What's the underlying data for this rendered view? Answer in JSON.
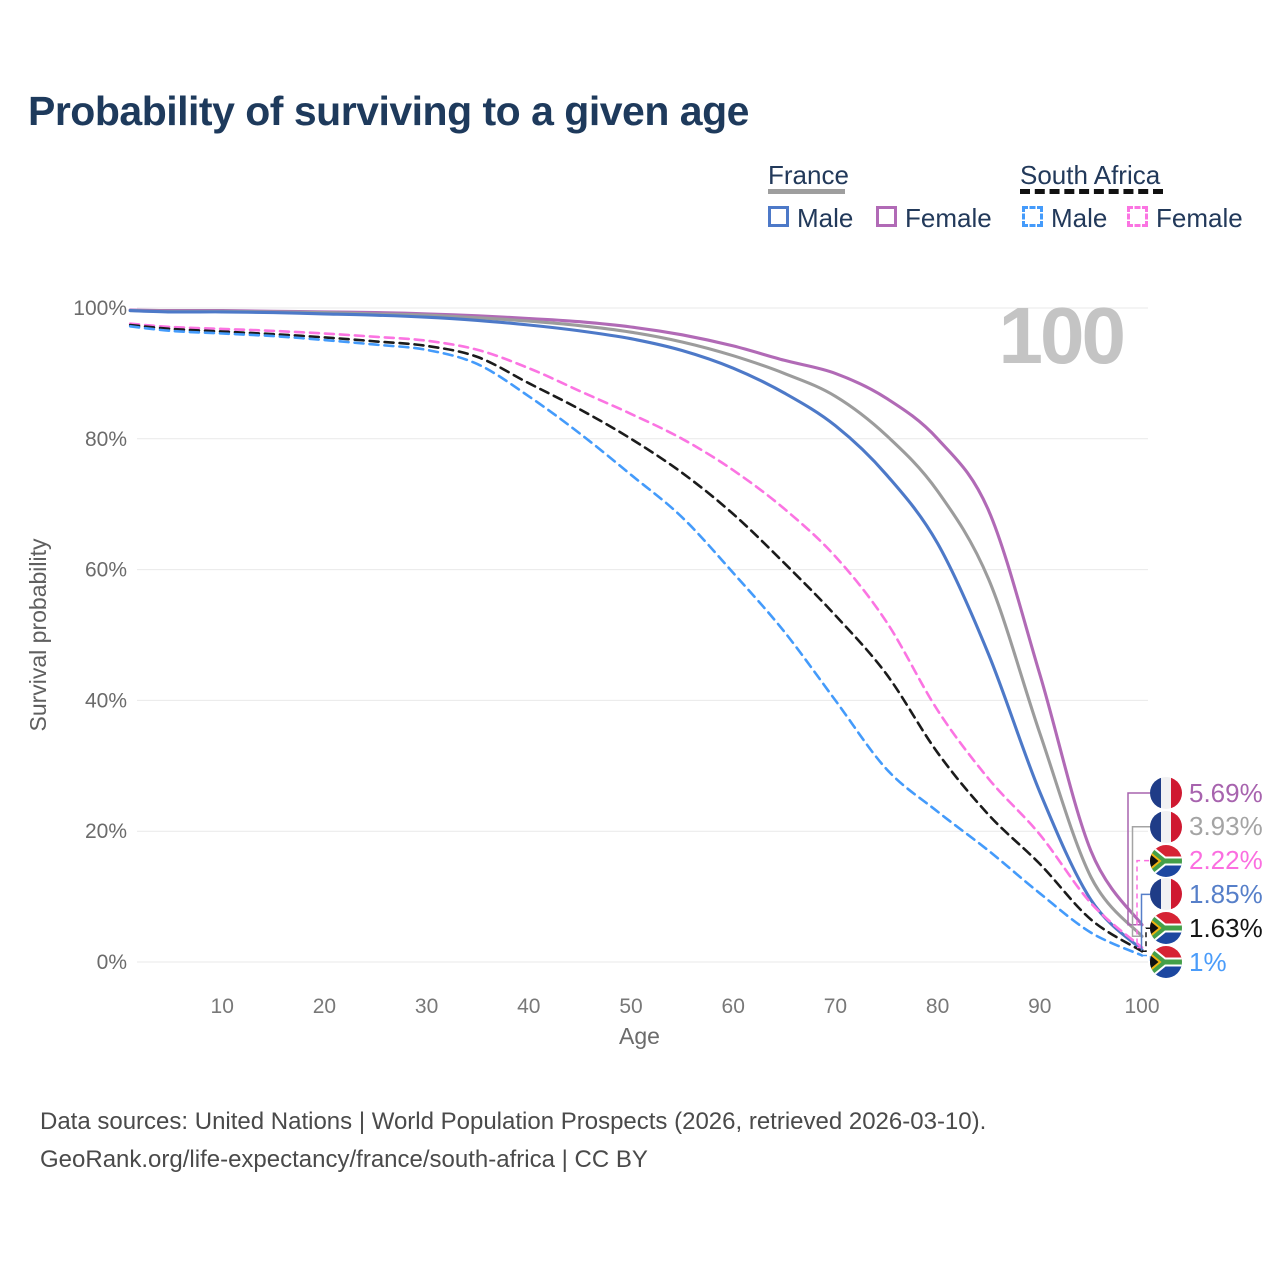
{
  "title": "Probability of surviving to a given age",
  "legend": {
    "groups": [
      {
        "label": "France",
        "style": "solid",
        "underline_color": "#9e9e9e",
        "items": [
          {
            "label": "Male",
            "color": "#4d79c8"
          },
          {
            "label": "Female",
            "color": "#b16ab6"
          }
        ]
      },
      {
        "label": "South Africa",
        "style": "dashed",
        "underline_color": "#111111",
        "items": [
          {
            "label": "Male",
            "color": "#449bfb"
          },
          {
            "label": "Female",
            "color": "#fb74e2"
          }
        ]
      }
    ]
  },
  "annotation": {
    "age_marker": "100"
  },
  "axes": {
    "x": {
      "label": "Age",
      "ticks": [
        10,
        20,
        30,
        40,
        50,
        60,
        70,
        80,
        90,
        100
      ],
      "min": 1,
      "max": 100
    },
    "y": {
      "label": "Survival probability",
      "tick_labels": [
        "0%",
        "20%",
        "40%",
        "60%",
        "80%",
        "100%"
      ],
      "tick_values": [
        0,
        20,
        40,
        60,
        80,
        100
      ]
    }
  },
  "chart_data": {
    "type": "line",
    "title": "Probability of surviving to a given age",
    "xlabel": "Age",
    "ylabel": "Survival probability",
    "xlim": [
      1,
      100
    ],
    "ylim": [
      0,
      100
    ],
    "grid": "horizontal",
    "legend_position": "top-right",
    "x": [
      1,
      5,
      10,
      15,
      20,
      25,
      30,
      35,
      40,
      45,
      50,
      55,
      60,
      65,
      70,
      75,
      80,
      85,
      90,
      95,
      100
    ],
    "series": [
      {
        "name": "France Female",
        "country": "France",
        "sex": "Female",
        "color": "#b16ab6",
        "dash": "solid",
        "values": [
          99.7,
          99.6,
          99.6,
          99.5,
          99.4,
          99.3,
          99.1,
          98.8,
          98.4,
          97.9,
          97.1,
          95.9,
          94.2,
          92.0,
          90.0,
          86.2,
          80.0,
          69.0,
          44.0,
          17.0,
          5.69
        ]
      },
      {
        "name": "France Both sexes",
        "country": "France",
        "sex": "Both",
        "color": "#9c9c9c",
        "dash": "solid",
        "values": [
          99.6,
          99.5,
          99.5,
          99.4,
          99.3,
          99.1,
          98.9,
          98.5,
          98.0,
          97.3,
          96.3,
          94.8,
          92.7,
          90.0,
          86.5,
          80.5,
          72.0,
          58.5,
          35.0,
          13.0,
          3.93
        ]
      },
      {
        "name": "France Male",
        "country": "France",
        "sex": "Male",
        "color": "#4d79c8",
        "dash": "solid",
        "values": [
          99.6,
          99.4,
          99.4,
          99.3,
          99.1,
          98.9,
          98.6,
          98.1,
          97.4,
          96.5,
          95.3,
          93.5,
          90.8,
          87.0,
          82.0,
          74.5,
          64.0,
          47.0,
          26.0,
          9.5,
          1.85
        ]
      },
      {
        "name": "South Africa Female",
        "country": "South Africa",
        "sex": "Female",
        "color": "#fb74e2",
        "dash": "dashed",
        "values": [
          97.6,
          97.1,
          96.8,
          96.5,
          96.1,
          95.6,
          95.0,
          93.6,
          90.8,
          87.3,
          83.8,
          80.0,
          75.2,
          69.3,
          62.0,
          52.0,
          38.5,
          28.0,
          19.5,
          9.0,
          2.22
        ]
      },
      {
        "name": "South Africa Both sexes",
        "country": "South Africa",
        "sex": "Both",
        "color": "#1b1b1b",
        "dash": "dashed",
        "values": [
          97.4,
          96.8,
          96.4,
          96.0,
          95.5,
          94.9,
          94.2,
          92.5,
          88.5,
          84.5,
          80.0,
          74.8,
          68.5,
          61.0,
          53.0,
          44.0,
          32.0,
          22.5,
          15.0,
          6.5,
          1.63
        ]
      },
      {
        "name": "South Africa Male",
        "country": "South Africa",
        "sex": "Male",
        "color": "#449bfb",
        "dash": "dashed",
        "values": [
          97.2,
          96.5,
          96.1,
          95.7,
          95.1,
          94.4,
          93.6,
          91.4,
          86.5,
          80.8,
          74.5,
          68.0,
          59.5,
          50.5,
          40.0,
          29.5,
          23.0,
          17.0,
          10.5,
          4.5,
          1.0
        ]
      }
    ]
  },
  "end_labels": [
    {
      "value": "5.69%",
      "numeric": 5.69,
      "flag": "france",
      "color": "#a763ae",
      "series": "France Female",
      "dash": "solid"
    },
    {
      "value": "3.93%",
      "numeric": 3.93,
      "flag": "france",
      "color": "#a4a4a4",
      "series": "France Both sexes",
      "dash": "solid"
    },
    {
      "value": "2.22%",
      "numeric": 2.22,
      "flag": "south-africa",
      "color": "#fb6ee0",
      "series": "South Africa Female",
      "dash": "dashed"
    },
    {
      "value": "1.85%",
      "numeric": 1.85,
      "flag": "france",
      "color": "#567fc9",
      "series": "France Male",
      "dash": "solid"
    },
    {
      "value": "1.63%",
      "numeric": 1.63,
      "flag": "south-africa",
      "color": "#141414",
      "series": "South Africa Both sexes",
      "dash": "dashed"
    },
    {
      "value": "1%",
      "numeric": 1.0,
      "flag": "south-africa",
      "color": "#4a9cfa",
      "series": "South Africa Male",
      "dash": "dashed"
    }
  ],
  "footer": {
    "line1": "Data sources: United Nations | World Population Prospects (2026, retrieved 2026-03-10).",
    "line2": "GeoRank.org/life-expectancy/france/south-africa | CC BY"
  }
}
